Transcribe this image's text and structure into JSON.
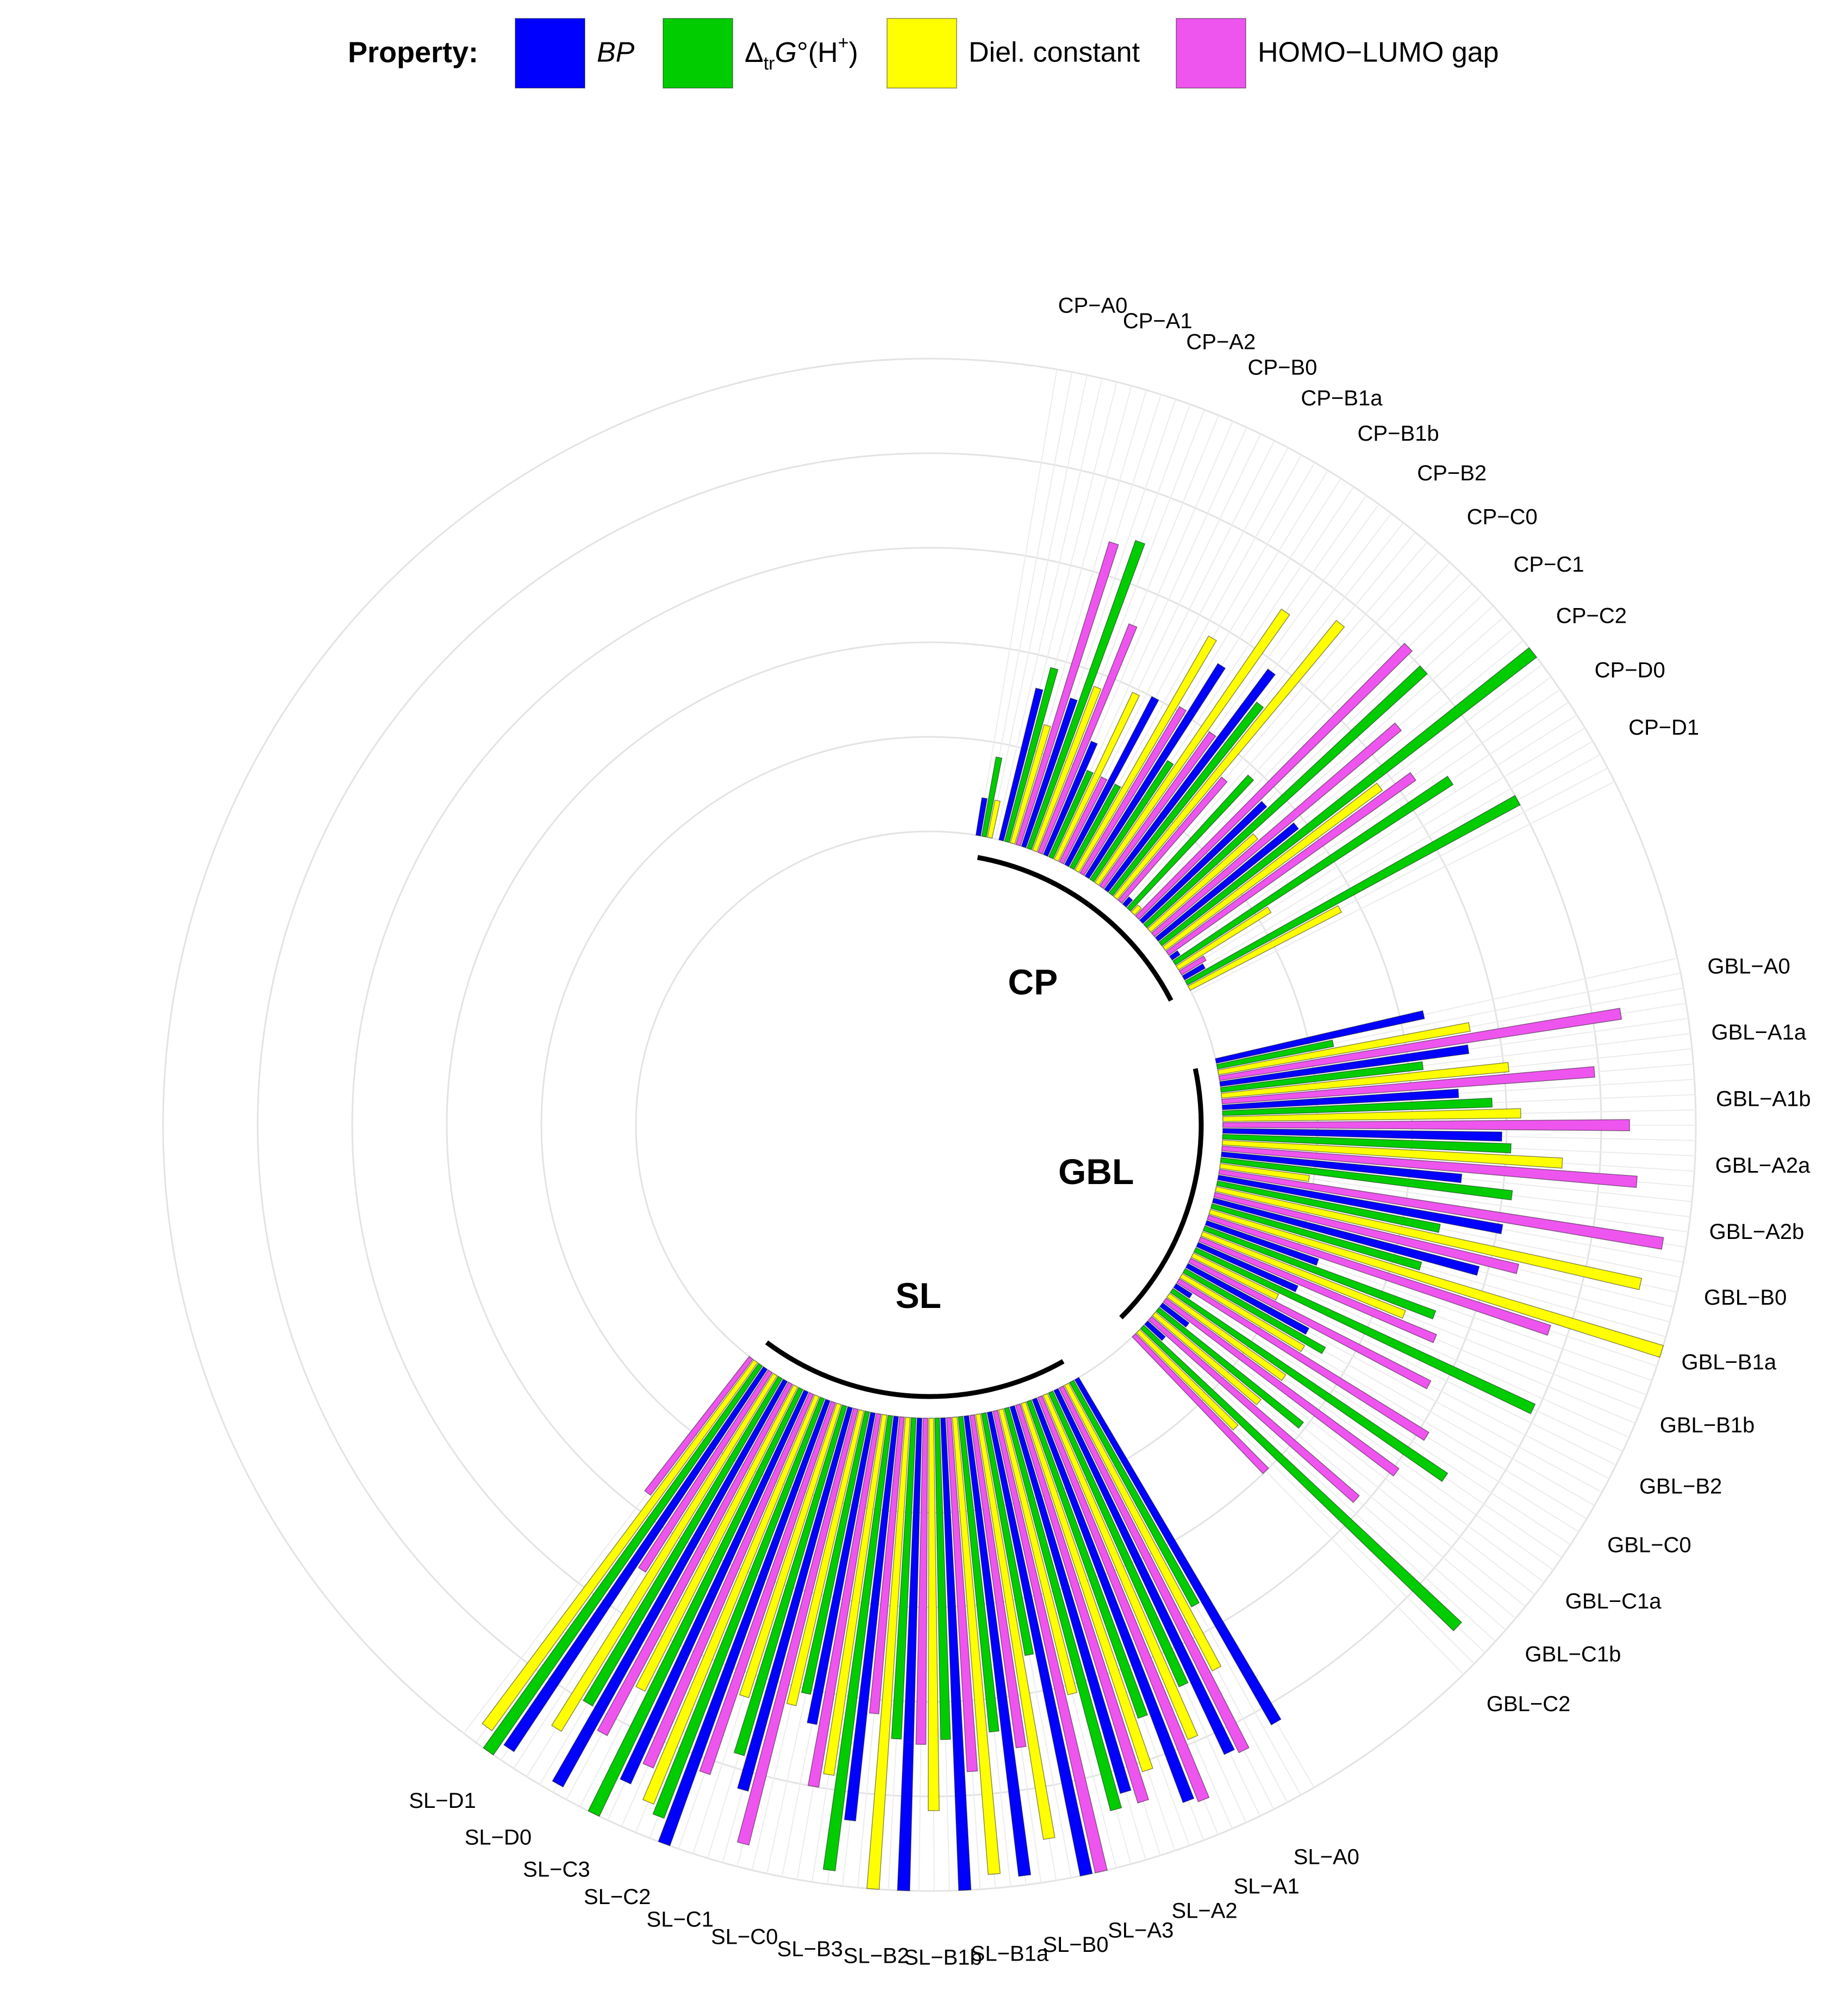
{
  "chart_data": {
    "type": "bar",
    "subtype": "circular-grouped-bar",
    "legend": {
      "title": "Property:",
      "position": "top",
      "entries": [
        {
          "key": "bp",
          "label": "BP",
          "color": "#0000FF"
        },
        {
          "key": "dg",
          "label": "ΔtrG°(H+)",
          "color": "#00CC00"
        },
        {
          "key": "de",
          "label": "Diel. constant",
          "color": "#FFFF00"
        },
        {
          "key": "hl",
          "label": "HOMO−LUMO gap",
          "color": "#EE55EE"
        }
      ]
    },
    "value_range": [
      0,
      1
    ],
    "groups": [
      {
        "name": "SL",
        "categories": [
          {
            "label": "SL−A0",
            "bp": 0.84,
            "dg": 0.54,
            "de": 0.68,
            "hl": 0.86
          },
          {
            "label": "SL−A1",
            "bp": 0.85,
            "dg": 0.68,
            "de": 0.79,
            "hl": 0.92
          },
          {
            "label": "SL−A2",
            "bp": 0.91,
            "dg": 0.71,
            "de": 0.82,
            "hl": 0.88
          },
          {
            "label": "SL−A3",
            "bp": 0.85,
            "dg": 0.88,
            "de": 0.62,
            "hl": 1.0
          },
          {
            "label": "SL−B0",
            "bp": 1.0,
            "dg": 0.52,
            "de": 0.91,
            "hl": 0.71
          },
          {
            "label": "SL−B1a",
            "bp": 0.98,
            "dg": 0.67,
            "de": 0.97,
            "hl": 0.75
          },
          {
            "label": "SL−B1b",
            "bp": 1.0,
            "dg": 0.68,
            "de": 0.83,
            "hl": 0.69
          },
          {
            "label": "SL−B2",
            "bp": 1.0,
            "dg": 0.68,
            "de": 1.0,
            "hl": 0.63
          },
          {
            "label": "SL−B3",
            "bp": 0.86,
            "dg": 0.97,
            "de": 0.77,
            "hl": 0.8
          },
          {
            "label": "SL−C0",
            "bp": 0.67,
            "dg": 0.61,
            "de": 0.64,
            "hl": 0.95
          },
          {
            "label": "SL−C1",
            "bp": 0.84,
            "dg": 0.77,
            "de": 0.65,
            "hl": 0.83
          },
          {
            "label": "SL−C2",
            "bp": 1.0,
            "dg": 0.95,
            "de": 0.93,
            "hl": 0.86
          },
          {
            "label": "SL−C3",
            "bp": 0.91,
            "dg": 1.0,
            "de": 0.72,
            "hl": 0.84
          },
          {
            "label": "SL−D0",
            "bp": 0.98,
            "dg": 0.8,
            "de": 0.88,
            "hl": 0.5
          },
          {
            "label": "SL−D1",
            "bp": 0.97,
            "dg": 1.0,
            "de": 0.96,
            "hl": 0.36
          }
        ]
      },
      {
        "name": "CP",
        "categories": [
          {
            "label": "CP−A0",
            "bp": 0.08,
            "dg": 0.17,
            "de": 0.08,
            "hl": 0.0
          },
          {
            "label": "CP−A1",
            "bp": 0.33,
            "dg": 0.38,
            "de": 0.26,
            "hl": 0.67
          },
          {
            "label": "CP−A2",
            "bp": 0.33,
            "dg": 0.69,
            "de": 0.37,
            "hl": 0.52
          },
          {
            "label": "CP−B0",
            "bp": 0.26,
            "dg": 0.2,
            "de": 0.39,
            "hl": 0.2
          },
          {
            "label": "CP−B1a",
            "bp": 0.4,
            "dg": 0.2,
            "de": 0.57,
            "hl": 0.41
          },
          {
            "label": "CP−B1b",
            "bp": 0.53,
            "dg": 0.3,
            "de": 0.7,
            "hl": 0.4
          },
          {
            "label": "CP−B2",
            "bp": 0.58,
            "dg": 0.51,
            "de": 0.75,
            "hl": 0.34
          },
          {
            "label": "CP−C0",
            "bp": 0.02,
            "dg": 0.38,
            "de": 0.02,
            "hl": 0.81
          },
          {
            "label": "CP−C1",
            "bp": 0.36,
            "dg": 0.8,
            "de": 0.3,
            "hl": 0.68
          },
          {
            "label": "CP−C2",
            "bp": 0.38,
            "dg": 1.0,
            "de": 0.57,
            "hl": 0.64
          },
          {
            "label": "CP−D0",
            "bp": 0.02,
            "dg": 0.7,
            "de": 0.23,
            "hl": 0.06
          },
          {
            "label": "CP−D1",
            "bp": 0.05,
            "dg": 0.8,
            "de": 0.36,
            "hl": 0.0
          }
        ]
      },
      {
        "name": "GBL",
        "categories": [
          {
            "label": "GBL−A0",
            "bp": 0.45,
            "dg": 0.25,
            "de": 0.54,
            "hl": 0.86
          },
          {
            "label": "GBL−A1a",
            "bp": 0.53,
            "dg": 0.43,
            "de": 0.61,
            "hl": 0.79
          },
          {
            "label": "GBL−A1b",
            "bp": 0.5,
            "dg": 0.57,
            "de": 0.63,
            "hl": 0.86
          },
          {
            "label": "GBL−A2a",
            "bp": 0.59,
            "dg": 0.61,
            "de": 0.72,
            "hl": 0.88
          },
          {
            "label": "GBL−A2b",
            "bp": 0.51,
            "dg": 0.62,
            "de": 0.19,
            "hl": 0.95
          },
          {
            "label": "GBL−B0",
            "bp": 0.61,
            "dg": 0.48,
            "de": 0.92,
            "hl": 0.66
          },
          {
            "label": "GBL−B1a",
            "bp": 0.58,
            "dg": 0.46,
            "de": 1.0,
            "hl": 0.76
          },
          {
            "label": "GBL−B1b",
            "bp": 0.25,
            "dg": 0.52,
            "de": 0.46,
            "hl": 0.54
          },
          {
            "label": "GBL−B2",
            "bp": 0.23,
            "dg": 0.79,
            "de": 0.2,
            "hl": 0.57
          },
          {
            "label": "GBL−C0",
            "bp": 0.29,
            "dg": 0.34,
            "de": 0.3,
            "hl": 0.62
          },
          {
            "label": "GBL−C1a",
            "bp": 0.04,
            "dg": 0.7,
            "de": 0.3,
            "hl": 0.61
          },
          {
            "label": "GBL−C1b",
            "bp": 0.07,
            "dg": 0.39,
            "de": 0.29,
            "hl": 0.58
          },
          {
            "label": "GBL−C2",
            "bp": 0.05,
            "dg": 0.92,
            "de": 0.29,
            "hl": 0.4
          }
        ]
      }
    ]
  }
}
